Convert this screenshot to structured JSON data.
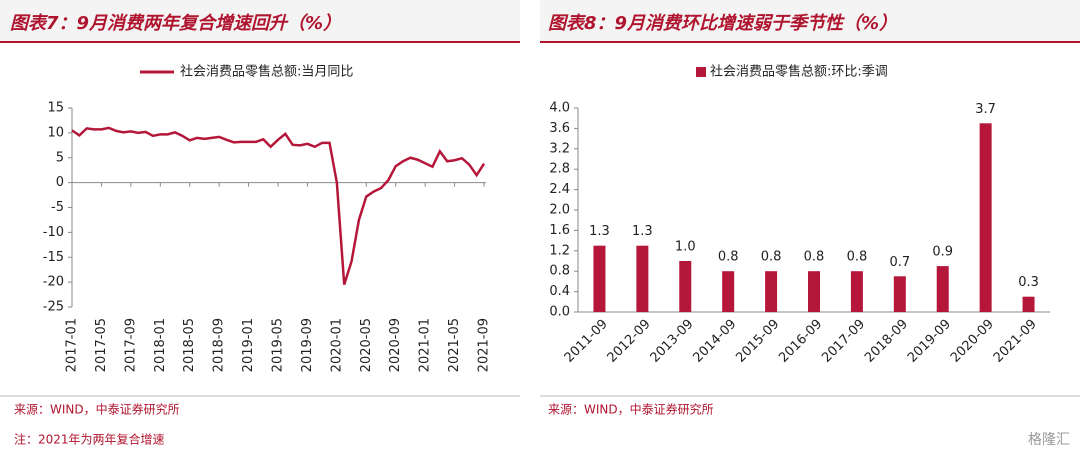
{
  "chart_data": [
    {
      "type": "line",
      "title": "图表7：9月消费两年复合增速回升（%）",
      "categories": [
        "2017-01",
        null,
        null,
        null,
        "2017-05",
        null,
        null,
        null,
        "2017-09",
        null,
        null,
        null,
        "2018-01",
        null,
        null,
        null,
        "2018-05",
        null,
        null,
        null,
        "2018-09",
        null,
        null,
        null,
        "2019-01",
        null,
        null,
        null,
        "2019-05",
        null,
        null,
        null,
        "2019-09",
        null,
        null,
        null,
        "2020-01",
        null,
        null,
        null,
        "2020-05",
        null,
        null,
        null,
        "2020-09",
        null,
        null,
        null,
        "2021-01",
        null,
        null,
        null,
        "2021-05",
        null,
        null,
        null,
        "2021-09"
      ],
      "series": [
        {
          "name": "社会消费品零售总额:当月同比",
          "color": "#b5173a",
          "values": [
            10.5,
            9.5,
            10.9,
            10.7,
            10.7,
            11.0,
            10.4,
            10.1,
            10.3,
            10.0,
            10.2,
            9.4,
            9.7,
            9.7,
            10.1,
            9.4,
            8.5,
            9.0,
            8.8,
            9.0,
            9.2,
            8.6,
            8.1,
            8.2,
            8.2,
            8.2,
            8.7,
            7.2,
            8.6,
            9.8,
            7.6,
            7.5,
            7.8,
            7.2,
            8.0,
            8.0,
            0,
            -20.5,
            -15.8,
            -7.5,
            -2.8,
            -1.8,
            -1.1,
            0.5,
            3.3,
            4.3,
            5.0,
            4.6,
            3.9,
            3.2,
            6.3,
            4.3,
            4.5,
            4.9,
            3.6,
            1.5,
            3.8
          ]
        }
      ],
      "ylim": [
        -25,
        15
      ],
      "yticks": [
        -25,
        -20,
        -15,
        -10,
        -5,
        0,
        5,
        10,
        15
      ],
      "source": "来源：WIND，中泰证券研究所",
      "note": "注：2021年为两年复合增速"
    },
    {
      "type": "bar",
      "title": "图表8：9月消费环比增速弱于季节性（%）",
      "categories": [
        "2011-09",
        "2012-09",
        "2013-09",
        "2014-09",
        "2015-09",
        "2016-09",
        "2017-09",
        "2018-09",
        "2019-09",
        "2020-09",
        "2021-09"
      ],
      "series": [
        {
          "name": "社会消费品零售总额:环比:季调",
          "color": "#b5173a",
          "values": [
            1.3,
            1.3,
            1.0,
            0.8,
            0.8,
            0.8,
            0.8,
            0.7,
            0.9,
            3.7,
            0.3
          ],
          "value_labels": [
            "1.3",
            "1.3",
            "1.0",
            "0.8",
            "0.8",
            "0.8",
            "0.8",
            "0.7",
            "0.9",
            "3.7",
            "0.3"
          ]
        }
      ],
      "ylim": [
        0,
        4.0
      ],
      "yticks": [
        {
          "value": 0,
          "label": "0.0"
        },
        {
          "value": 0.4,
          "label": "0.4"
        },
        {
          "value": 0.8,
          "label": "0.8"
        },
        {
          "value": 1.2,
          "label": "1.2"
        },
        {
          "value": 1.6,
          "label": "1.6"
        },
        {
          "value": 2.0,
          "label": "2.0"
        },
        {
          "value": 2.4,
          "label": "2.4"
        },
        {
          "value": 2.8,
          "label": "2.8"
        },
        {
          "value": 3.2,
          "label": "3.2"
        },
        {
          "value": 3.6,
          "label": "3.6"
        },
        {
          "value": 4.0,
          "label": "4.0"
        }
      ],
      "source": "来源：WIND，中泰证券研究所"
    }
  ],
  "watermark": "格隆汇"
}
